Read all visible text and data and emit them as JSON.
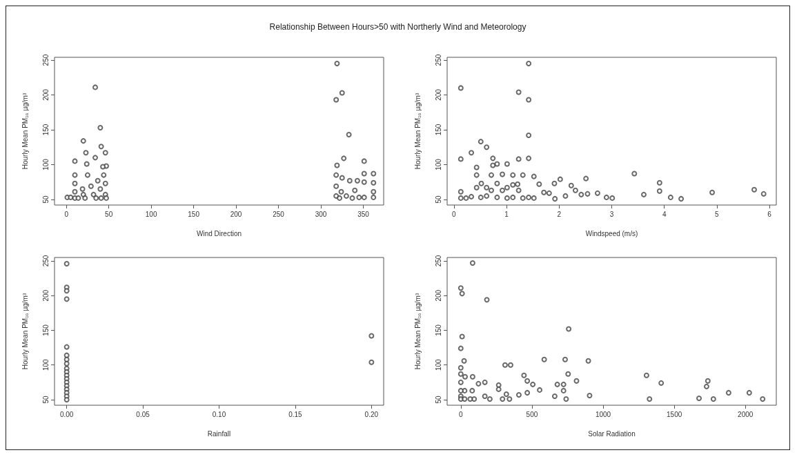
{
  "chart_data": [
    {
      "type": "scatter",
      "title": "Relationship Between Hours>50 with Northerly Wind and Meteorology",
      "xlabel": "Wind Direction",
      "ylabel": "Hourly Mean PM₁₀ µg/m³",
      "marker": "circle",
      "grid": false,
      "xlim": [
        -14,
        374
      ],
      "ylim": [
        42,
        254
      ],
      "xticks": [
        0,
        50,
        100,
        150,
        200,
        250,
        300,
        350
      ],
      "yticks": [
        50,
        100,
        150,
        200,
        250
      ],
      "series": [
        {
          "color": "#444444",
          "x": [
            319,
            325,
            318,
            34,
            40,
            333,
            20,
            41,
            23,
            46,
            34,
            10,
            24,
            47,
            327,
            319,
            351,
            351,
            362,
            362,
            362,
            362,
            351,
            351,
            343,
            334,
            325,
            318,
            318,
            318,
            324,
            330,
            340,
            345,
            337,
            322,
            1,
            5,
            10,
            10,
            10,
            10,
            20,
            22,
            25,
            29,
            32,
            37,
            40,
            41,
            44,
            46,
            46,
            47,
            43,
            35,
            19,
            14
          ],
          "values": [
            245,
            203,
            193,
            211,
            153,
            143,
            134,
            126,
            117,
            117,
            110,
            105,
            101,
            98,
            109,
            99,
            105,
            87,
            87,
            74,
            61,
            53,
            75,
            53,
            77,
            77,
            81,
            85,
            69,
            55,
            61,
            55,
            63,
            53,
            52,
            52,
            53,
            53,
            85,
            73,
            61,
            52,
            57,
            52,
            85,
            69,
            57,
            77,
            65,
            52,
            85,
            73,
            57,
            52,
            97,
            52,
            65,
            52
          ]
        }
      ]
    },
    {
      "type": "scatter",
      "xlabel": "Windspeed (m/s)",
      "ylabel": "Hourly Mean PM₁₀ µg/m³",
      "marker": "circle",
      "grid": false,
      "xlim": [
        -0.13,
        6.13
      ],
      "ylim": [
        42,
        254
      ],
      "xticks": [
        0,
        1,
        2,
        3,
        4,
        5,
        6
      ],
      "yticks": [
        50,
        100,
        150,
        200,
        250
      ],
      "series": [
        {
          "color": "#444444",
          "x": [
            1.42,
            0.13,
            1.23,
            1.42,
            0.51,
            0.62,
            1.42,
            1.42,
            0.13,
            0.33,
            0.74,
            0.82,
            1.01,
            1.23,
            0.43,
            0.74,
            0.43,
            0.71,
            0.92,
            1.12,
            1.31,
            1.52,
            1.62,
            1.91,
            2.02,
            2.23,
            2.51,
            3.43,
            3.91,
            3.91,
            3.61,
            4.12,
            4.32,
            4.91,
            5.71,
            5.89,
            3.01,
            2.9,
            2.73,
            2.54,
            2.42,
            2.31,
            2.12,
            1.92,
            1.81,
            1.71,
            0.13,
            0.13,
            0.23,
            0.33,
            0.51,
            0.62,
            0.71,
            0.82,
            0.92,
            1.01,
            1.01,
            1.12,
            1.12,
            1.23,
            1.31,
            1.42,
            1.52,
            0.43,
            0.62,
            0.52,
            0.82,
            1.21
          ],
          "values": [
            245,
            210,
            204,
            193,
            133,
            125,
            142,
            109,
            108,
            117,
            109,
            101,
            101,
            108,
            96,
            99,
            85,
            85,
            86,
            85,
            85,
            83,
            72,
            73,
            79,
            70,
            80,
            87,
            74,
            62,
            57,
            53,
            51,
            60,
            64,
            58,
            52,
            53,
            59,
            58,
            57,
            63,
            55,
            51,
            59,
            60,
            61,
            52,
            52,
            54,
            53,
            55,
            63,
            53,
            63,
            67,
            52,
            71,
            53,
            63,
            52,
            53,
            52,
            67,
            67,
            73,
            73,
            72
          ]
        }
      ]
    },
    {
      "type": "scatter",
      "xlabel": "Rainfall",
      "ylabel": "Hourly Mean PM₁₀ µg/m³",
      "marker": "circle",
      "grid": false,
      "xlim": [
        -0.008,
        0.208
      ],
      "ylim": [
        42,
        255
      ],
      "xticks": [
        {
          "value": 0,
          "label": "0.00"
        },
        0.05,
        {
          "value": 0.1,
          "label": "0.10"
        },
        0.15,
        {
          "value": 0.2,
          "label": "0.20"
        }
      ],
      "yticks": [
        50,
        100,
        150,
        200,
        250
      ],
      "series": [
        {
          "color": "#444444",
          "x": [
            0,
            0,
            0,
            0,
            0,
            0,
            0,
            0,
            0,
            0,
            0,
            0,
            0,
            0,
            0,
            0,
            0,
            0,
            0.2,
            0.2
          ],
          "values": [
            246,
            212,
            207,
            195,
            126,
            114,
            108,
            102,
            95,
            90,
            85,
            80,
            75,
            70,
            65,
            60,
            55,
            50,
            142,
            104
          ]
        }
      ]
    },
    {
      "type": "scatter",
      "xlabel": "Solar Radiation",
      "ylabel": "Hourly Mean PM₁₀ µg/m³",
      "marker": "circle",
      "grid": false,
      "xlim": [
        -96,
        2217
      ],
      "ylim": [
        42,
        255
      ],
      "xticks": [
        0,
        500,
        1000,
        1500,
        2000
      ],
      "yticks": [
        50,
        100,
        150,
        200,
        250
      ],
      "series": [
        {
          "color": "#444444",
          "x": [
            83,
            0,
            9,
            183,
            9,
            758,
            0,
            23,
            0,
            311,
            350,
            586,
            733,
            896,
            754,
            813,
            444,
            467,
            506,
            554,
            678,
            722,
            722,
            1305,
            1408,
            1736,
            1727,
            1882,
            2027,
            2121,
            1775,
            1674,
            1326,
            905,
            660,
            740,
            408,
            467,
            320,
            342,
            293,
            266,
            266,
            169,
            124,
            83,
            80,
            27,
            169,
            204,
            94,
            66,
            0,
            0,
            0,
            0,
            0,
            30,
            27
          ],
          "values": [
            247,
            211,
            203,
            194,
            141,
            152,
            124,
            106,
            96,
            100,
            100,
            108,
            108,
            106,
            87,
            77,
            85,
            77,
            72,
            64,
            72,
            72,
            63,
            85,
            74,
            77,
            69,
            60,
            60,
            51,
            51,
            52,
            51,
            56,
            55,
            51,
            57,
            60,
            58,
            51,
            51,
            71,
            65,
            75,
            73,
            83,
            63,
            63,
            55,
            51,
            51,
            51,
            87,
            75,
            63,
            55,
            51,
            83,
            51
          ]
        }
      ]
    }
  ]
}
